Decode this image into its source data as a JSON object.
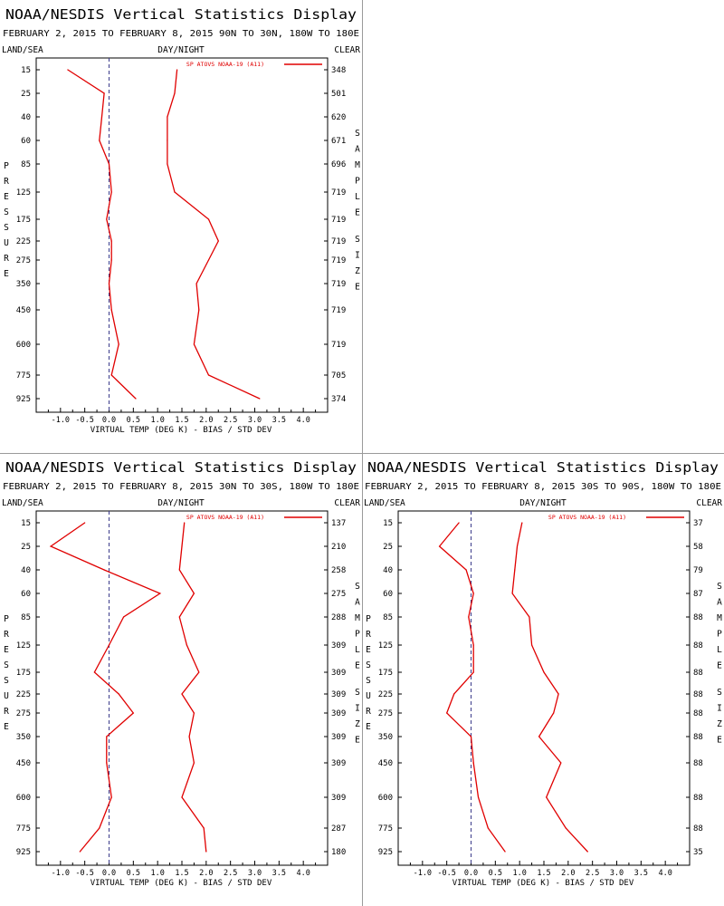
{
  "panels": [
    {
      "title": "NOAA/NESDIS Vertical Statistics Display",
      "subtitle": "FEBRUARY 2, 2015 TO FEBRUARY 8, 2015  90N TO 30N, 180W TO 180E",
      "header_left": "LAND/SEA",
      "header_center": "DAY/NIGHT",
      "header_right": "CLEAR",
      "left_axis_label": "PRESSURE",
      "right_axis_label": "SAMPLE SIZE",
      "legend_label": "SP ATOVS NOAA-19 (A11)",
      "xlabel": "VIRTUAL TEMP (DEG K) - BIAS / STD DEV"
    },
    {
      "title": "NOAA/NESDIS Vertical Statistics Display",
      "subtitle": "FEBRUARY 2, 2015 TO FEBRUARY 8, 2015  30N TO 30S, 180W TO 180E",
      "header_left": "LAND/SEA",
      "header_center": "DAY/NIGHT",
      "header_right": "CLEAR",
      "left_axis_label": "PRESSURE",
      "right_axis_label": "SAMPLE SIZE",
      "legend_label": "SP ATOVS NOAA-19 (A11)",
      "xlabel": "VIRTUAL TEMP (DEG K) - BIAS / STD DEV"
    },
    {
      "title": "NOAA/NESDIS Vertical Statistics Display",
      "subtitle": "FEBRUARY 2, 2015 TO FEBRUARY 8, 2015  30S TO 90S, 180W TO 180E",
      "header_left": "LAND/SEA",
      "header_center": "DAY/NIGHT",
      "header_right": "CLEAR",
      "left_axis_label": "PRESSURE",
      "right_axis_label": "SAMPLE SIZE",
      "legend_label": "SP ATOVS NOAA-19 (A11)",
      "xlabel": "VIRTUAL TEMP (DEG K) - BIAS / STD DEV"
    }
  ],
  "chart_data": [
    {
      "type": "line",
      "pressure_levels": [
        "15",
        "25",
        "40",
        "60",
        "85",
        "125",
        "175",
        "225",
        "275",
        "350",
        "450",
        "600",
        "775",
        "925"
      ],
      "x_ticks": [
        "-1.0",
        "-0.5",
        "0.0",
        "0.5",
        "1.0",
        "1.5",
        "2.0",
        "2.5",
        "3.0",
        "3.5",
        "4.0"
      ],
      "xlim": [
        -1.5,
        4.5
      ],
      "bias_reference": 0.0,
      "series": [
        {
          "name": "SP ATOVS NOAA-19 (A11)",
          "role": "bias",
          "values": [
            -0.85,
            -0.1,
            -0.15,
            -0.2,
            0.0,
            0.05,
            -0.05,
            0.05,
            0.05,
            0.0,
            0.05,
            0.2,
            0.05,
            0.55
          ],
          "color": "#e00000"
        },
        {
          "name": "SP ATOVS NOAA-19 (A11)",
          "role": "std_dev",
          "values": [
            1.4,
            1.35,
            1.2,
            1.2,
            1.2,
            1.35,
            2.05,
            2.25,
            2.05,
            1.8,
            1.85,
            1.75,
            2.05,
            3.1
          ],
          "color": "#e00000"
        }
      ],
      "sample_size": [
        "348",
        "501",
        "620",
        "671",
        "696",
        "719",
        "719",
        "719",
        "719",
        "719",
        "719",
        "719",
        "705",
        "374"
      ]
    },
    {
      "type": "line",
      "pressure_levels": [
        "15",
        "25",
        "40",
        "60",
        "85",
        "125",
        "175",
        "225",
        "275",
        "350",
        "450",
        "600",
        "775",
        "925"
      ],
      "x_ticks": [
        "-1.0",
        "-0.5",
        "0.0",
        "0.5",
        "1.0",
        "1.5",
        "2.0",
        "2.5",
        "3.0",
        "3.5",
        "4.0"
      ],
      "xlim": [
        -1.5,
        4.5
      ],
      "bias_reference": 0.0,
      "series": [
        {
          "name": "SP ATOVS NOAA-19 (A11)",
          "role": "bias",
          "values": [
            -0.5,
            -1.2,
            -0.1,
            1.05,
            0.3,
            0.0,
            -0.3,
            0.2,
            0.5,
            -0.05,
            -0.05,
            0.05,
            -0.2,
            -0.6
          ],
          "color": "#e00000"
        },
        {
          "name": "SP ATOVS NOAA-19 (A11)",
          "role": "std_dev",
          "values": [
            1.55,
            1.5,
            1.45,
            1.75,
            1.45,
            1.6,
            1.85,
            1.5,
            1.75,
            1.65,
            1.75,
            1.5,
            1.95,
            2.0
          ],
          "color": "#e00000"
        }
      ],
      "sample_size": [
        "137",
        "210",
        "258",
        "275",
        "288",
        "309",
        "309",
        "309",
        "309",
        "309",
        "309",
        "309",
        "287",
        "180"
      ]
    },
    {
      "type": "line",
      "pressure_levels": [
        "15",
        "25",
        "40",
        "60",
        "85",
        "125",
        "175",
        "225",
        "275",
        "350",
        "450",
        "600",
        "775",
        "925"
      ],
      "x_ticks": [
        "-1.0",
        "-0.5",
        "0.0",
        "0.5",
        "1.0",
        "1.5",
        "2.0",
        "2.5",
        "3.0",
        "3.5",
        "4.0"
      ],
      "xlim": [
        -1.5,
        4.5
      ],
      "bias_reference": 0.0,
      "series": [
        {
          "name": "SP ATOVS NOAA-19 (A11)",
          "role": "bias",
          "values": [
            -0.25,
            -0.65,
            -0.1,
            0.05,
            -0.05,
            0.05,
            0.05,
            -0.35,
            -0.5,
            0.0,
            0.05,
            0.15,
            0.35,
            0.7
          ],
          "color": "#e00000"
        },
        {
          "name": "SP ATOVS NOAA-19 (A11)",
          "role": "std_dev",
          "values": [
            1.05,
            0.95,
            0.9,
            0.85,
            1.2,
            1.25,
            1.5,
            1.8,
            1.7,
            1.4,
            1.85,
            1.55,
            1.95,
            2.4
          ],
          "color": "#e00000"
        }
      ],
      "sample_size": [
        "37",
        "58",
        "79",
        "87",
        "88",
        "88",
        "88",
        "88",
        "88",
        "88",
        "88",
        "88",
        "88",
        "35"
      ]
    }
  ]
}
